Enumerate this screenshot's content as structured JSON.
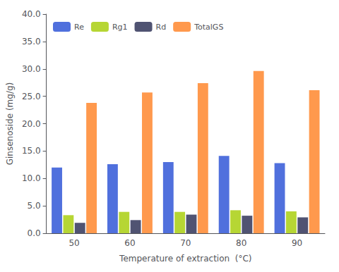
{
  "chart_data": {
    "type": "bar",
    "xlabel": "Temperature of extraction  (°C)",
    "ylabel": "Ginsenoside (mg/g)",
    "categories": [
      "50",
      "60",
      "70",
      "80",
      "90"
    ],
    "series": [
      {
        "name": "Re",
        "values": [
          12.0,
          12.6,
          13.0,
          14.1,
          12.8
        ]
      },
      {
        "name": "Rg1",
        "values": [
          3.3,
          3.9,
          3.9,
          4.2,
          4.0
        ]
      },
      {
        "name": "Rd",
        "values": [
          1.9,
          2.4,
          3.4,
          3.2,
          2.9
        ]
      },
      {
        "name": "TotalGS",
        "values": [
          23.8,
          25.7,
          27.4,
          29.6,
          26.1
        ]
      }
    ],
    "ylim": [
      0.0,
      40.0
    ],
    "yticks": [
      {
        "value": 0,
        "label": "0.0"
      },
      {
        "value": 5,
        "label": "5.0"
      },
      {
        "value": 10,
        "label": "10.0"
      },
      {
        "value": 15,
        "label": "15.0"
      },
      {
        "value": 20,
        "label": "20.0"
      },
      {
        "value": 25,
        "label": "25.0"
      },
      {
        "value": 30,
        "label": "30.0"
      },
      {
        "value": 35,
        "label": "35.0"
      },
      {
        "value": 40,
        "label": "40.0"
      }
    ],
    "legend": "upper left",
    "grid": false
  }
}
